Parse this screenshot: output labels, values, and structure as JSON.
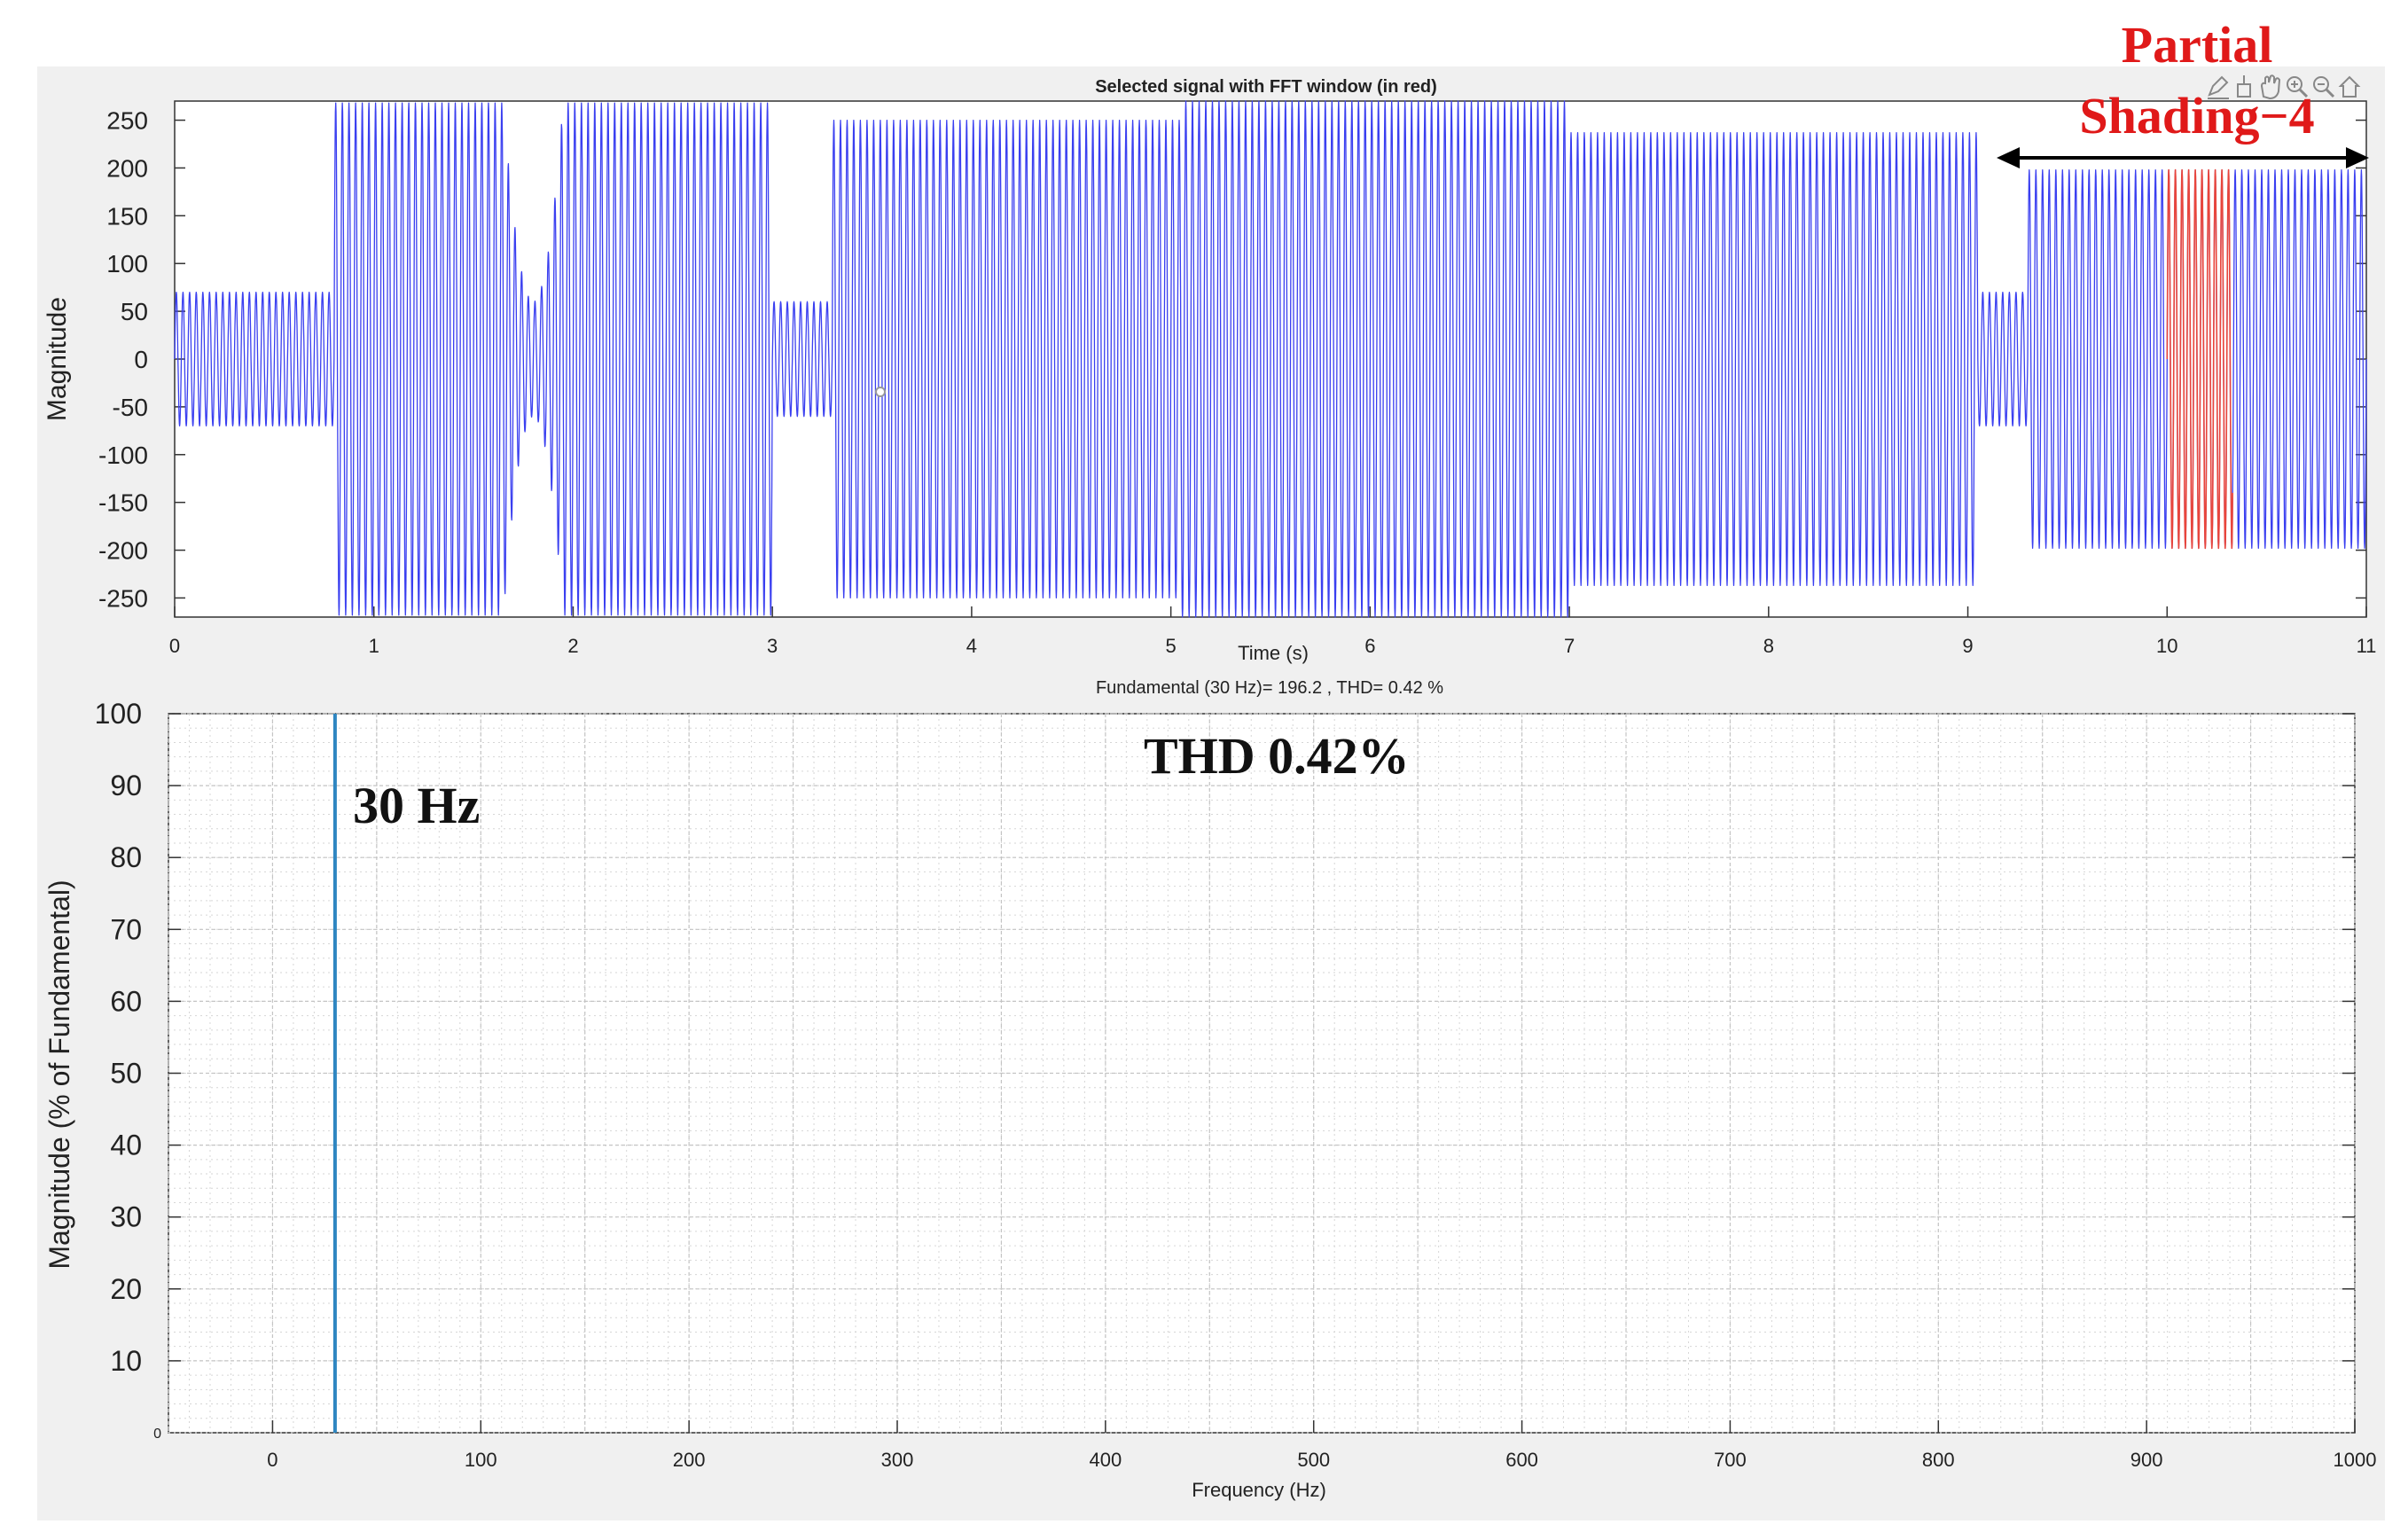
{
  "window": {
    "toolbar_icons": [
      "edit-icon",
      "data-cursor-icon",
      "pan-hand-icon",
      "zoom-in-icon",
      "zoom-out-icon",
      "home-icon"
    ]
  },
  "chart_data": [
    {
      "type": "line",
      "title": "Selected signal with FFT window (in red)",
      "xlabel": "Time (s)",
      "ylabel": "Magnitude",
      "xlim": [
        0,
        11
      ],
      "ylim": [
        -270,
        270
      ],
      "xticks": [
        0,
        1,
        2,
        3,
        4,
        5,
        6,
        7,
        8,
        9,
        10,
        11
      ],
      "yticks": [
        250,
        200,
        150,
        100,
        50,
        0,
        -50,
        -100,
        -150,
        -200,
        -250
      ],
      "signal_frequency_hz": 30,
      "fft_window": {
        "start": 10.0,
        "end": 10.33
      },
      "segments": [
        {
          "start": 0.0,
          "end": 0.8,
          "amplitude": 70
        },
        {
          "start": 0.8,
          "end": 1.65,
          "amplitude": 268
        },
        {
          "start": 1.65,
          "end": 1.95,
          "amplitude": 268,
          "amplitude_min": 60
        },
        {
          "start": 1.95,
          "end": 3.0,
          "amplitude": 268
        },
        {
          "start": 3.0,
          "end": 3.3,
          "amplitude": 60
        },
        {
          "start": 3.3,
          "end": 5.05,
          "amplitude": 250
        },
        {
          "start": 5.05,
          "end": 5.3,
          "amplitude": 270
        },
        {
          "start": 5.3,
          "end": 7.0,
          "amplitude": 270
        },
        {
          "start": 7.0,
          "end": 9.05,
          "amplitude": 237
        },
        {
          "start": 9.05,
          "end": 9.3,
          "amplitude": 70
        },
        {
          "start": 9.3,
          "end": 11.0,
          "amplitude": 198
        }
      ],
      "grid": false
    },
    {
      "type": "bar",
      "title": "Fundamental (30 Hz)= 196.2 , THD= 0.42 %",
      "xlabel": "Frequency (Hz)",
      "ylabel": "Magnitude (% of Fundamental)",
      "xlim": [
        -50,
        1000
      ],
      "ylim": [
        0,
        100
      ],
      "xticks": [
        0,
        100,
        200,
        300,
        400,
        500,
        600,
        700,
        800,
        900,
        1000
      ],
      "yticks": [
        10,
        20,
        30,
        40,
        50,
        60,
        70,
        80,
        90,
        100
      ],
      "ytick_zero": "0",
      "x": [
        30
      ],
      "values": [
        100
      ],
      "grid": true
    }
  ],
  "annotations": {
    "partial_shading_line1": "Partial",
    "partial_shading_line2": "Shading−4",
    "fundamental_label": "30 Hz",
    "thd_label": "THD 0.42%"
  },
  "colors": {
    "signal": "#3a3ff0",
    "fft_window": "#e8453c",
    "spectrum_bar": "#2e86c1",
    "annotation_red": "#e01919",
    "panel_bg": "#f0f0f0"
  }
}
